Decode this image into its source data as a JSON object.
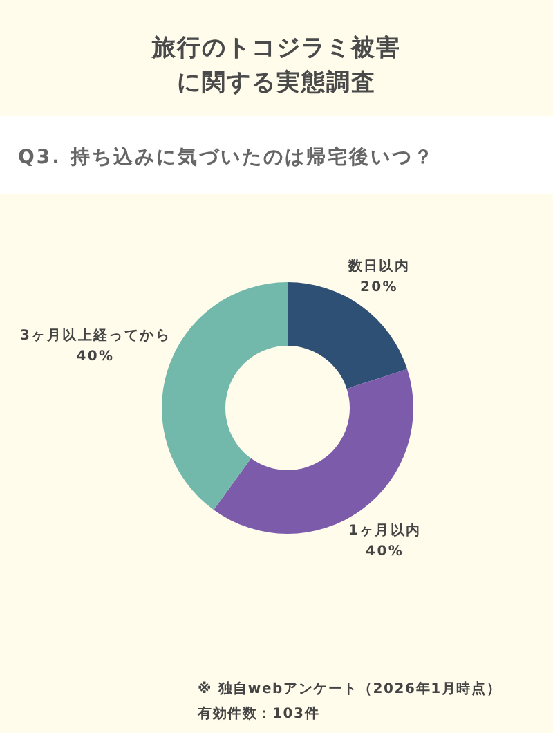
{
  "chart_data": {
    "type": "donut",
    "title": "旅行のトコジラミ被害に関する実態調査",
    "subtitle": "Q3. 持ち込みに気づいたのは帰宅後いつ？",
    "categories": [
      "数日以内",
      "1ヶ月以内",
      "3ヶ月以上経ってから"
    ],
    "values": [
      20,
      40,
      40
    ],
    "colors": [
      "#2d5074",
      "#7d5bab",
      "#72b9ab"
    ],
    "value_labels": [
      "20%",
      "40%",
      "40%"
    ],
    "annotations": [
      "※ 独自webアンケート（2026年1月時点）",
      "有効件数：103件"
    ]
  }
}
